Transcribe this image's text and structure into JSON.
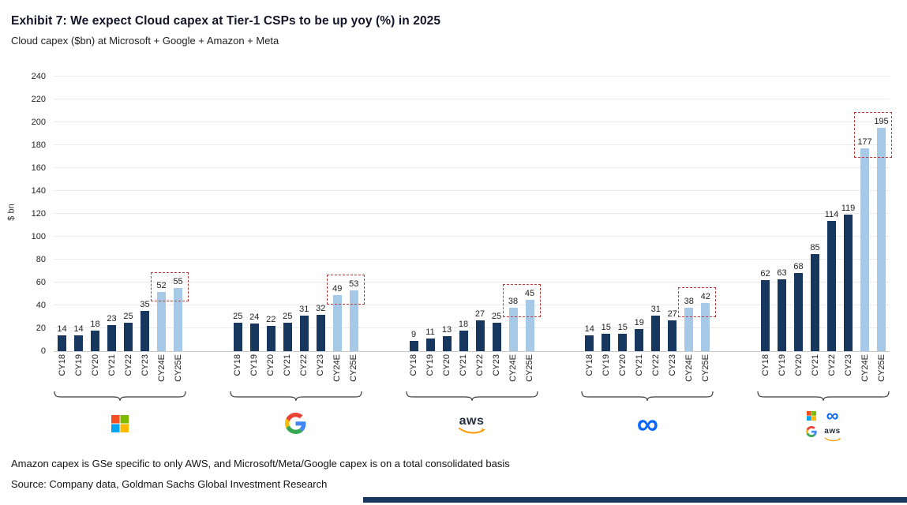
{
  "header": {
    "title": "Exhibit 7: We expect Cloud capex at Tier-1 CSPs to be up yoy (%) in 2025",
    "subtitle": "Cloud capex ($bn) at Microsoft + Google + Amazon + Meta"
  },
  "footnotes": [
    "Amazon capex is GSe specific to only AWS, and Microsoft/Meta/Google capex is on a total consolidated basis",
    "Source: Company data, Goldman Sachs Global Investment Research"
  ],
  "chart_data": {
    "type": "bar",
    "title": "Exhibit 7: We expect Cloud capex at Tier-1 CSPs to be up yoy (%) in 2025",
    "subtitle": "Cloud capex ($bn) at Microsoft + Google + Amazon + Meta",
    "xlabel": "",
    "ylabel": "$ bn",
    "ylim": [
      0,
      240
    ],
    "yticks": [
      0,
      20,
      40,
      60,
      80,
      100,
      120,
      140,
      160,
      180,
      200,
      220,
      240
    ],
    "grid": true,
    "legend_position": "none",
    "categories": [
      "CY18",
      "CY19",
      "CY20",
      "CY21",
      "CY22",
      "CY23",
      "CY24E",
      "CY25E"
    ],
    "estimate_categories": [
      "CY24E",
      "CY25E"
    ],
    "groups": [
      {
        "name": "Microsoft",
        "logo": "microsoft",
        "values": [
          14,
          14,
          18,
          23,
          25,
          35,
          52,
          55
        ]
      },
      {
        "name": "Google",
        "logo": "google",
        "values": [
          25,
          24,
          22,
          25,
          31,
          32,
          49,
          53
        ]
      },
      {
        "name": "AWS",
        "logo": "aws",
        "values": [
          9,
          11,
          13,
          18,
          27,
          25,
          38,
          45
        ]
      },
      {
        "name": "Meta",
        "logo": "meta",
        "values": [
          14,
          15,
          15,
          19,
          31,
          27,
          38,
          42
        ]
      },
      {
        "name": "Microsoft + Meta + Google + AWS",
        "logo": "combined",
        "values": [
          62,
          63,
          68,
          85,
          114,
          119,
          177,
          195
        ]
      }
    ],
    "colors": {
      "actual": "#17375E",
      "estimate": "#A6C9E8",
      "estimate_box": "#C23B3B"
    },
    "icons": {
      "microsoft": "microsoft-four-squares-icon",
      "google": "google-g-icon",
      "aws": "aws-smile-icon",
      "meta": "meta-infinity-icon",
      "combined": "microsoft-meta-google-aws-icons"
    }
  }
}
